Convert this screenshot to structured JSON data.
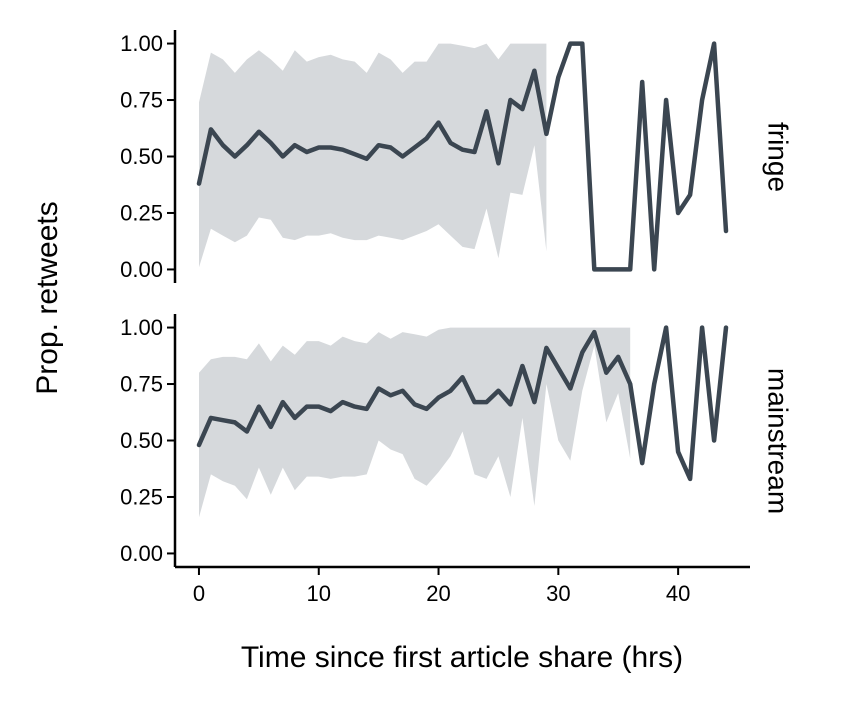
{
  "colors": {
    "line": "#3b4651",
    "band": "#d6d9dc"
  },
  "chart_data": {
    "type": "line",
    "xlabel": "Time since first article share (hrs)",
    "ylabel": "Prop. retweets",
    "xlim": [
      -2,
      46
    ],
    "ylim": [
      -0.06,
      1.06
    ],
    "xticks": [
      0,
      10,
      20,
      30,
      40
    ],
    "yticks": [
      "0.00",
      "0.25",
      "0.50",
      "0.75",
      "1.00"
    ],
    "grid": false,
    "facets": [
      {
        "label": "fringe",
        "x": [
          0,
          1,
          2,
          3,
          4,
          5,
          6,
          7,
          8,
          9,
          10,
          11,
          12,
          13,
          14,
          15,
          16,
          17,
          18,
          19,
          20,
          21,
          22,
          23,
          24,
          25,
          26,
          27,
          28,
          29,
          30,
          31,
          32,
          33,
          34,
          35,
          36,
          37,
          38,
          39,
          40,
          41,
          42,
          43,
          44
        ],
        "y": [
          0.38,
          0.62,
          0.55,
          0.5,
          0.55,
          0.61,
          0.56,
          0.5,
          0.55,
          0.52,
          0.54,
          0.54,
          0.53,
          0.51,
          0.49,
          0.55,
          0.54,
          0.5,
          0.54,
          0.58,
          0.65,
          0.56,
          0.53,
          0.52,
          0.7,
          0.47,
          0.75,
          0.71,
          0.88,
          0.6,
          0.85,
          1.0,
          1.0,
          0.0,
          0.0,
          0.0,
          0.0,
          0.83,
          0.0,
          0.75,
          0.25,
          0.33,
          0.75,
          1.0,
          0.17
        ],
        "lower": [
          0.01,
          0.18,
          0.15,
          0.12,
          0.15,
          0.23,
          0.22,
          0.14,
          0.13,
          0.15,
          0.15,
          0.16,
          0.14,
          0.13,
          0.13,
          0.15,
          0.14,
          0.13,
          0.15,
          0.17,
          0.2,
          0.15,
          0.1,
          0.09,
          0.27,
          0.05,
          0.34,
          0.33,
          0.55,
          0.08,
          null,
          null,
          null,
          null,
          null,
          null,
          null,
          null,
          null,
          null,
          null,
          null,
          null,
          null,
          null
        ],
        "upper": [
          0.74,
          0.96,
          0.93,
          0.87,
          0.93,
          0.97,
          0.93,
          0.88,
          0.97,
          0.92,
          0.94,
          0.95,
          0.93,
          0.92,
          0.87,
          0.96,
          0.93,
          0.87,
          0.92,
          0.92,
          1.0,
          1.0,
          0.99,
          0.98,
          1.0,
          0.93,
          1.0,
          1.0,
          1.0,
          1.0,
          1.0,
          null,
          null,
          null,
          null,
          null,
          null,
          null,
          null,
          null,
          null,
          null,
          null,
          null,
          null
        ]
      },
      {
        "label": "mainstream",
        "x": [
          0,
          1,
          2,
          3,
          4,
          5,
          6,
          7,
          8,
          9,
          10,
          11,
          12,
          13,
          14,
          15,
          16,
          17,
          18,
          19,
          20,
          21,
          22,
          23,
          24,
          25,
          26,
          27,
          28,
          29,
          30,
          31,
          32,
          33,
          34,
          35,
          36,
          37,
          38,
          39,
          40,
          41,
          42,
          43,
          44
        ],
        "y": [
          0.48,
          0.6,
          0.59,
          0.58,
          0.54,
          0.65,
          0.56,
          0.67,
          0.6,
          0.65,
          0.65,
          0.63,
          0.67,
          0.65,
          0.64,
          0.73,
          0.7,
          0.72,
          0.66,
          0.64,
          0.69,
          0.72,
          0.78,
          0.67,
          0.67,
          0.72,
          0.66,
          0.83,
          0.67,
          0.91,
          0.82,
          0.73,
          0.89,
          0.98,
          0.8,
          0.87,
          0.75,
          0.4,
          0.75,
          1.0,
          0.45,
          0.33,
          1.0,
          0.5,
          1.0
        ],
        "lower": [
          0.16,
          0.35,
          0.32,
          0.3,
          0.24,
          0.38,
          0.26,
          0.38,
          0.28,
          0.34,
          0.34,
          0.33,
          0.34,
          0.34,
          0.35,
          0.5,
          0.46,
          0.44,
          0.33,
          0.3,
          0.36,
          0.43,
          0.54,
          0.35,
          0.33,
          0.43,
          0.25,
          0.6,
          0.21,
          0.75,
          0.5,
          0.41,
          0.72,
          0.92,
          0.58,
          0.71,
          0.42,
          null,
          null,
          null,
          null,
          0.01,
          null,
          null,
          null
        ],
        "upper": [
          0.8,
          0.86,
          0.87,
          0.87,
          0.86,
          0.93,
          0.85,
          0.92,
          0.88,
          0.94,
          0.94,
          0.92,
          0.96,
          0.94,
          0.93,
          0.98,
          0.95,
          0.98,
          0.97,
          0.96,
          0.99,
          1.0,
          1.0,
          1.0,
          1.0,
          1.0,
          1.0,
          1.0,
          1.0,
          1.0,
          1.0,
          1.0,
          1.0,
          1.0,
          1.0,
          1.0,
          1.0,
          null,
          null,
          null,
          null,
          null,
          null,
          null,
          null
        ]
      }
    ]
  }
}
